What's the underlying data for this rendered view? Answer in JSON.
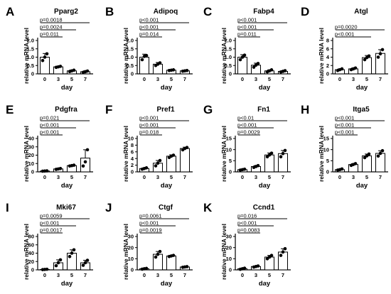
{
  "chart_data": [
    {
      "letter": "A",
      "title": "Pparg2",
      "type": "bar",
      "ylabel": "relative mRNA level",
      "xlabel": "day",
      "categories": [
        "0",
        "3",
        "5",
        "7"
      ],
      "values": [
        1.0,
        0.42,
        0.18,
        0.13
      ],
      "errors": [
        0.22,
        0.04,
        0.05,
        0.05
      ],
      "points": [
        [
          0.8,
          1.0,
          1.2
        ],
        [
          0.39,
          0.42,
          0.45
        ],
        [
          0.14,
          0.18,
          0.22
        ],
        [
          0.09,
          0.13,
          0.17
        ]
      ],
      "ylim": [
        0,
        2.0
      ],
      "yticks": [
        0,
        0.5,
        1.0,
        1.5,
        2.0
      ],
      "ytick_labels": [
        "0",
        "0.5",
        "1.0",
        "1.5",
        "2.0"
      ],
      "comparisons": [
        {
          "to": "3",
          "p": "p=0.011"
        },
        {
          "to": "5",
          "p": "p=0.0024"
        },
        {
          "to": "7",
          "p": "p=0.0018"
        }
      ]
    },
    {
      "letter": "B",
      "title": "Adipoq",
      "type": "bar",
      "ylabel": "relative mRNA level",
      "xlabel": "day",
      "categories": [
        "0",
        "3",
        "5",
        "7"
      ],
      "values": [
        1.0,
        0.58,
        0.22,
        0.18
      ],
      "errors": [
        0.18,
        0.1,
        0.03,
        0.03
      ],
      "points": [
        [
          0.85,
          1.05,
          1.1
        ],
        [
          0.5,
          0.58,
          0.66
        ],
        [
          0.2,
          0.22,
          0.24
        ],
        [
          0.16,
          0.18,
          0.2
        ]
      ],
      "ylim": [
        0,
        2.0
      ],
      "yticks": [
        0,
        0.5,
        1.0,
        1.5,
        2.0
      ],
      "ytick_labels": [
        "0",
        "0.5",
        "1.0",
        "1.5",
        "2.0"
      ],
      "comparisons": [
        {
          "to": "3",
          "p": "p=0.014"
        },
        {
          "to": "5",
          "p": "p<0.001"
        },
        {
          "to": "7",
          "p": "p<0.001"
        }
      ]
    },
    {
      "letter": "C",
      "title": "Fabp4",
      "type": "bar",
      "ylabel": "relative mRNA level",
      "xlabel": "day",
      "categories": [
        "0",
        "3",
        "5",
        "7"
      ],
      "values": [
        1.0,
        0.52,
        0.18,
        0.15
      ],
      "errors": [
        0.15,
        0.12,
        0.06,
        0.04
      ],
      "points": [
        [
          0.85,
          1.0,
          1.12
        ],
        [
          0.4,
          0.52,
          0.62
        ],
        [
          0.12,
          0.18,
          0.24
        ],
        [
          0.11,
          0.15,
          0.19
        ]
      ],
      "ylim": [
        0,
        2.0
      ],
      "yticks": [
        0,
        0.5,
        1.0,
        1.5,
        2.0
      ],
      "ytick_labels": [
        "0",
        "0.5",
        "1.0",
        "1.5",
        "2.0"
      ],
      "comparisons": [
        {
          "to": "3",
          "p": "p=0.011"
        },
        {
          "to": "5",
          "p": "p<0.001"
        },
        {
          "to": "7",
          "p": "p<0.001"
        }
      ]
    },
    {
      "letter": "D",
      "title": "Atgl",
      "type": "bar",
      "ylabel": "relative mRNA level",
      "xlabel": "day",
      "categories": [
        "0",
        "3",
        "5",
        "7"
      ],
      "values": [
        1.0,
        1.2,
        3.9,
        4.9
      ],
      "errors": [
        0.2,
        0.2,
        0.5,
        0.9
      ],
      "points": [
        [
          0.8,
          1.0,
          1.2
        ],
        [
          1.0,
          1.2,
          1.4
        ],
        [
          3.4,
          3.9,
          4.3
        ],
        [
          4.0,
          4.8,
          5.8
        ]
      ],
      "ylim": [
        0,
        8
      ],
      "yticks": [
        0,
        2,
        4,
        6,
        8
      ],
      "ytick_labels": [
        "0",
        "2",
        "4",
        "6",
        "8"
      ],
      "comparisons": [
        {
          "to": "5",
          "p": "p<0.001"
        },
        {
          "to": "7",
          "p": "p=0.0020"
        }
      ]
    },
    {
      "letter": "E",
      "title": "Pdgfra",
      "type": "bar",
      "ylabel": "relative mRNA level",
      "xlabel": "day",
      "categories": [
        "0",
        "3",
        "5",
        "7"
      ],
      "values": [
        1.0,
        3.5,
        7.5,
        16.5
      ],
      "errors": [
        0.3,
        0.5,
        0.8,
        10.0
      ],
      "points": [
        [
          0.8,
          1.0,
          1.2
        ],
        [
          3.0,
          3.5,
          4.0
        ],
        [
          7.0,
          7.5,
          8.0
        ],
        [
          7.0,
          12.0,
          26.5
        ]
      ],
      "ylim": [
        0,
        40
      ],
      "yticks": [
        0,
        10,
        20,
        30,
        40
      ],
      "ytick_labels": [
        "0",
        "10",
        "20",
        "30",
        "40"
      ],
      "comparisons": [
        {
          "to": "3",
          "p": "p<0.001"
        },
        {
          "to": "5",
          "p": "p<0.001"
        },
        {
          "to": "7",
          "p": "p=0.021"
        }
      ]
    },
    {
      "letter": "F",
      "title": "Pref1",
      "type": "bar",
      "ylabel": "relative mRNA level",
      "xlabel": "day",
      "categories": [
        "0",
        "3",
        "5",
        "7"
      ],
      "values": [
        1.0,
        2.6,
        4.7,
        7.0
      ],
      "errors": [
        0.2,
        0.8,
        0.4,
        0.4
      ],
      "points": [
        [
          0.8,
          1.0,
          1.2
        ],
        [
          1.8,
          2.6,
          3.4
        ],
        [
          4.3,
          4.7,
          5.0
        ],
        [
          6.6,
          7.0,
          7.3
        ]
      ],
      "ylim": [
        0,
        10
      ],
      "yticks": [
        0,
        2,
        4,
        6,
        8,
        10
      ],
      "ytick_labels": [
        "0",
        "2",
        "4",
        "6",
        "8",
        "10"
      ],
      "comparisons": [
        {
          "to": "3",
          "p": "p=0.018"
        },
        {
          "to": "5",
          "p": "p<0.001"
        },
        {
          "to": "7",
          "p": "p<0.001"
        }
      ]
    },
    {
      "letter": "G",
      "title": "Fn1",
      "type": "bar",
      "ylabel": "relative mRNA level",
      "xlabel": "day",
      "categories": [
        "0",
        "3",
        "5",
        "7"
      ],
      "values": [
        1.0,
        2.4,
        7.6,
        8.2
      ],
      "errors": [
        0.2,
        0.4,
        0.9,
        1.4
      ],
      "points": [
        [
          0.8,
          1.0,
          1.2
        ],
        [
          2.0,
          2.4,
          2.8
        ],
        [
          6.8,
          7.6,
          8.4
        ],
        [
          6.8,
          8.2,
          9.6
        ]
      ],
      "ylim": [
        0,
        15
      ],
      "yticks": [
        0,
        5,
        10,
        15
      ],
      "ytick_labels": [
        "0",
        "5",
        "10",
        "15"
      ],
      "comparisons": [
        {
          "to": "3",
          "p": "p=0.0029"
        },
        {
          "to": "5",
          "p": "p<0.001"
        },
        {
          "to": "7",
          "p": "p<0.01"
        }
      ]
    },
    {
      "letter": "H",
      "title": "Itga5",
      "type": "bar",
      "ylabel": "relative mRNA level",
      "xlabel": "day",
      "categories": [
        "0",
        "3",
        "5",
        "7"
      ],
      "values": [
        1.0,
        3.3,
        7.2,
        8.3
      ],
      "errors": [
        0.3,
        0.4,
        0.8,
        1.2
      ],
      "points": [
        [
          0.8,
          1.0,
          1.3
        ],
        [
          2.9,
          3.3,
          3.7
        ],
        [
          6.4,
          7.2,
          8.0
        ],
        [
          7.1,
          8.3,
          9.5
        ]
      ],
      "ylim": [
        0,
        15
      ],
      "yticks": [
        0,
        5,
        10,
        15
      ],
      "ytick_labels": [
        "0",
        "5",
        "10",
        "15"
      ],
      "comparisons": [
        {
          "to": "3",
          "p": "p<0.001"
        },
        {
          "to": "5",
          "p": "p<0.001"
        },
        {
          "to": "7",
          "p": "p<0.001"
        }
      ]
    },
    {
      "letter": "I",
      "title": "Mki67",
      "type": "bar",
      "ylabel": "relative mRNA level",
      "xlabel": "day",
      "categories": [
        "0",
        "3",
        "5",
        "7"
      ],
      "values": [
        1.0,
        17.0,
        40.0,
        17.0
      ],
      "errors": [
        0.5,
        7.0,
        8.0,
        6.0
      ],
      "points": [
        [
          0.6,
          1.0,
          1.4
        ],
        [
          10.0,
          17.0,
          24.0
        ],
        [
          32.0,
          40.0,
          48.0
        ],
        [
          11.0,
          17.0,
          23.0
        ]
      ],
      "ylim": [
        0,
        80
      ],
      "yticks": [
        0,
        20,
        40,
        60,
        80
      ],
      "ytick_labels": [
        "0",
        "20",
        "40",
        "60",
        "80"
      ],
      "comparisons": [
        {
          "to": "3",
          "p": "p=0.0017"
        },
        {
          "to": "5",
          "p": "p<0.001"
        },
        {
          "to": "7",
          "p": "p=0.0059"
        }
      ]
    },
    {
      "letter": "J",
      "title": "Ctgf",
      "type": "bar",
      "ylabel": "relative mRNA level",
      "xlabel": "day",
      "categories": [
        "0",
        "3",
        "5",
        "7"
      ],
      "values": [
        1.0,
        14.0,
        12.5,
        2.6
      ],
      "errors": [
        0.4,
        2.5,
        0.5,
        0.3
      ],
      "points": [
        [
          0.6,
          1.0,
          1.3
        ],
        [
          11.5,
          14.0,
          16.5
        ],
        [
          12.0,
          12.5,
          13.0
        ],
        [
          2.3,
          2.6,
          2.9
        ]
      ],
      "ylim": [
        0,
        30
      ],
      "yticks": [
        0,
        10,
        20,
        30
      ],
      "ytick_labels": [
        "0",
        "10",
        "20",
        "30"
      ],
      "comparisons": [
        {
          "to": "3",
          "p": "p=0.0019"
        },
        {
          "to": "5",
          "p": "p<0.001"
        },
        {
          "to": "7",
          "p": "p=0.0061"
        }
      ]
    },
    {
      "letter": "K",
      "title": "Ccnd1",
      "type": "bar",
      "ylabel": "relative mRNA level",
      "xlabel": "day",
      "categories": [
        "0",
        "3",
        "5",
        "7"
      ],
      "values": [
        1.0,
        3.0,
        11.5,
        16.0
      ],
      "errors": [
        0.6,
        0.5,
        1.5,
        3.0
      ],
      "points": [
        [
          0.5,
          1.0,
          1.5
        ],
        [
          2.5,
          3.0,
          3.5
        ],
        [
          10.0,
          11.5,
          13.0
        ],
        [
          13.0,
          16.0,
          19.0
        ]
      ],
      "ylim": [
        0,
        30
      ],
      "yticks": [
        0,
        10,
        20,
        30
      ],
      "ytick_labels": [
        "0",
        "10",
        "20",
        "30"
      ],
      "comparisons": [
        {
          "to": "3",
          "p": "p=0.0083"
        },
        {
          "to": "5",
          "p": "p<0.001"
        },
        {
          "to": "7",
          "p": "p=0.016"
        }
      ]
    }
  ]
}
